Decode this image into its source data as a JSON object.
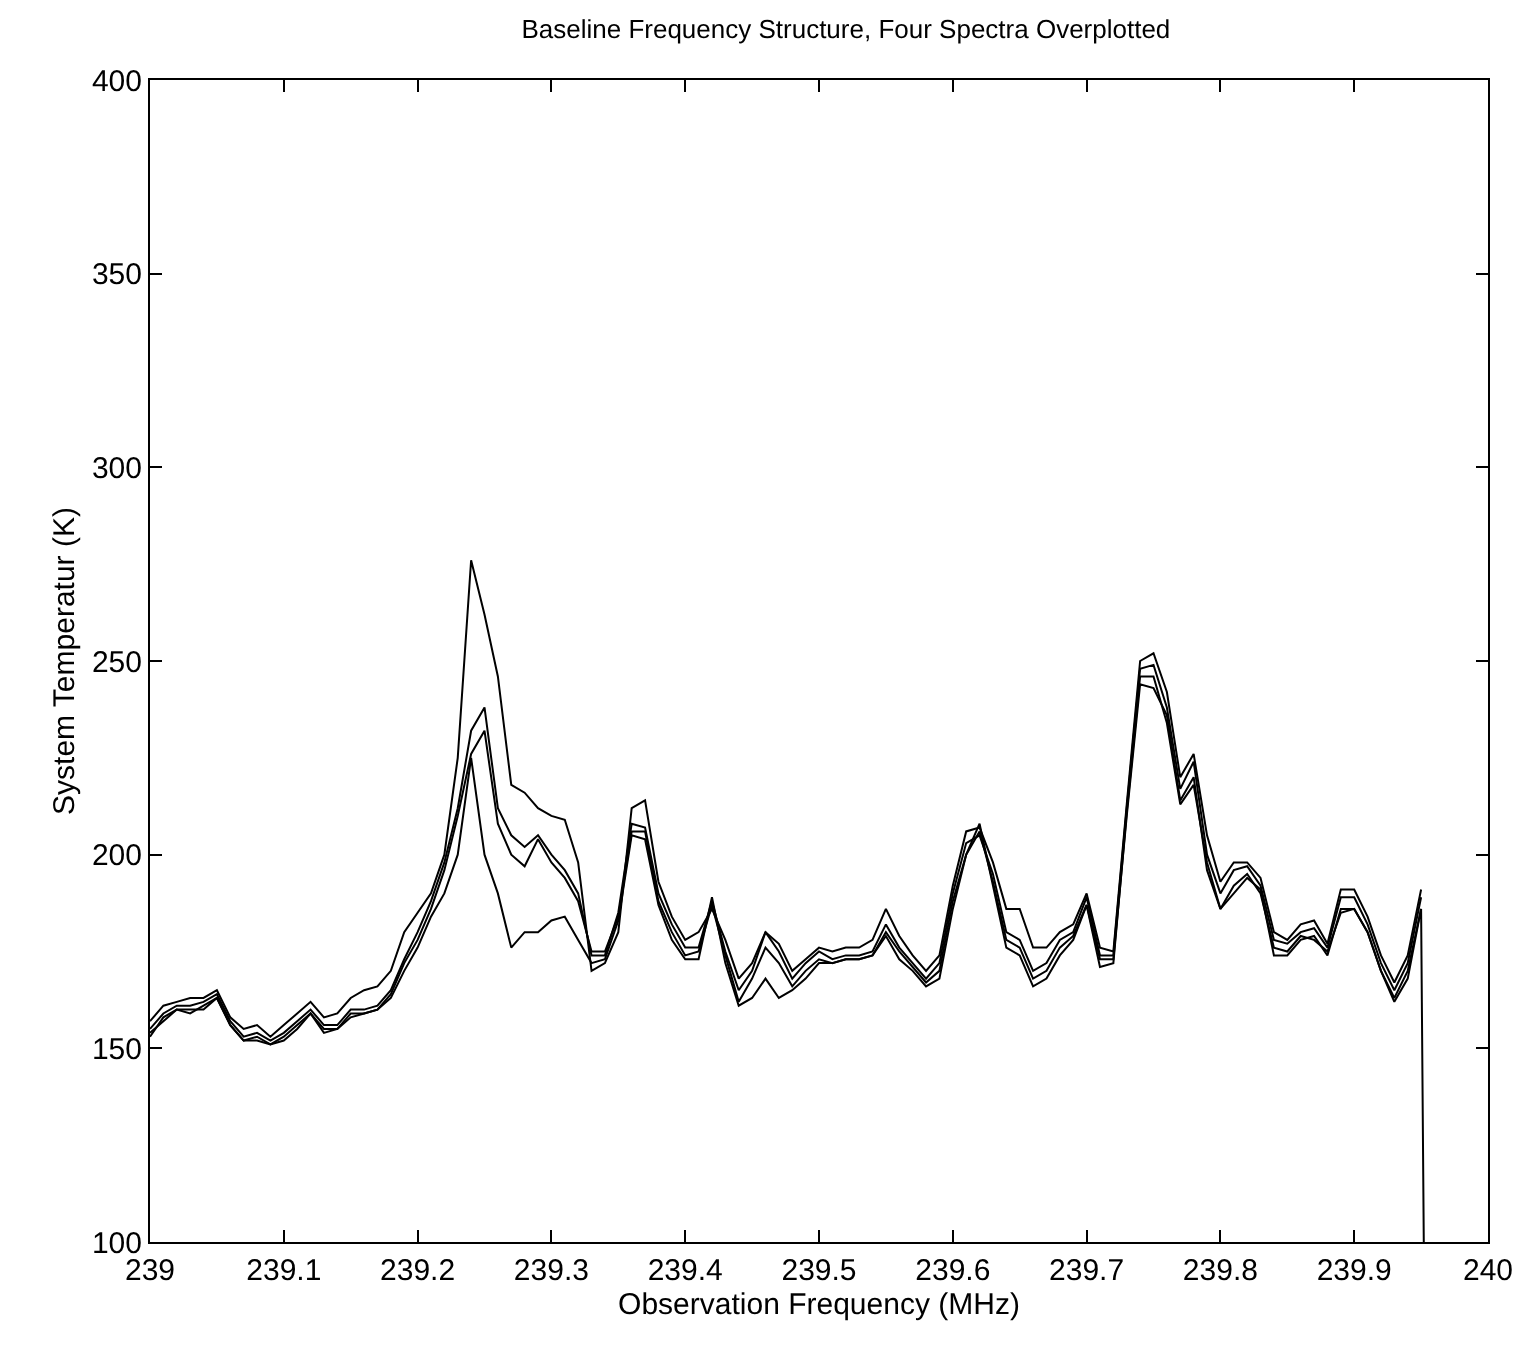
{
  "chart_data": {
    "type": "line",
    "title": "Baseline Frequency Structure, Four Spectra Overplotted",
    "xlabel": "Observation Frequency (MHz)",
    "ylabel": "System Temperatur (K)",
    "x": [
      239.0,
      239.01,
      239.02,
      239.03,
      239.04,
      239.05,
      239.06,
      239.07,
      239.08,
      239.09,
      239.1,
      239.11,
      239.12,
      239.13,
      239.14,
      239.15,
      239.16,
      239.17,
      239.18,
      239.19,
      239.2,
      239.21,
      239.22,
      239.23,
      239.24,
      239.25,
      239.26,
      239.27,
      239.28,
      239.29,
      239.3,
      239.31,
      239.32,
      239.33,
      239.34,
      239.35,
      239.36,
      239.37,
      239.38,
      239.39,
      239.4,
      239.41,
      239.42,
      239.43,
      239.44,
      239.45,
      239.46,
      239.47,
      239.48,
      239.49,
      239.5,
      239.51,
      239.52,
      239.53,
      239.54,
      239.55,
      239.56,
      239.57,
      239.58,
      239.59,
      239.6,
      239.61,
      239.62,
      239.63,
      239.64,
      239.65,
      239.66,
      239.67,
      239.68,
      239.69,
      239.7,
      239.71,
      239.72,
      239.73,
      239.74,
      239.75,
      239.76,
      239.77,
      239.78,
      239.79,
      239.8,
      239.81,
      239.82,
      239.83,
      239.84,
      239.85,
      239.86,
      239.87,
      239.88,
      239.89,
      239.9,
      239.91,
      239.92,
      239.93,
      239.94,
      239.95,
      239.952
    ],
    "series": [
      {
        "color": "#000000",
        "values": [
          157,
          161,
          162,
          163,
          163,
          165,
          158,
          155,
          156,
          153,
          156,
          159,
          162,
          158,
          159,
          163,
          165,
          166,
          170,
          180,
          185,
          190,
          200,
          225,
          276,
          262,
          246,
          218,
          216,
          212,
          210,
          209,
          198,
          170,
          172,
          180,
          212,
          214,
          193,
          184,
          178,
          180,
          186,
          178,
          168,
          172,
          180,
          177,
          170,
          173,
          176,
          175,
          176,
          176,
          178,
          186,
          179,
          174,
          170,
          174,
          192,
          206,
          207,
          198,
          186,
          186,
          176,
          176,
          180,
          182,
          190,
          176,
          175,
          213,
          250,
          252,
          242,
          220,
          226,
          205,
          193,
          198,
          198,
          194,
          180,
          178,
          182,
          183,
          177,
          191,
          191,
          184,
          174,
          167,
          174,
          191,
          null
        ]
      },
      {
        "color": "#000000",
        "values": [
          155,
          159,
          161,
          161,
          162,
          164,
          157,
          153,
          154,
          152,
          154,
          157,
          160,
          156,
          156,
          160,
          160,
          161,
          165,
          173,
          180,
          188,
          198,
          212,
          232,
          238,
          212,
          205,
          202,
          205,
          200,
          196,
          190,
          174,
          174,
          185,
          208,
          207,
          190,
          182,
          176,
          176,
          188,
          175,
          165,
          170,
          180,
          175,
          168,
          172,
          175,
          173,
          174,
          174,
          175,
          182,
          176,
          172,
          168,
          172,
          190,
          203,
          205,
          195,
          180,
          178,
          170,
          172,
          178,
          180,
          189,
          174,
          174,
          212,
          248,
          249,
          238,
          217,
          224,
          200,
          190,
          196,
          197,
          192,
          178,
          177,
          180,
          181,
          176,
          189,
          189,
          182,
          172,
          165,
          172,
          189,
          null
        ]
      },
      {
        "color": "#000000",
        "values": [
          154,
          157,
          160,
          160,
          160,
          163,
          156,
          152,
          153,
          151,
          153,
          156,
          159,
          155,
          155,
          158,
          159,
          160,
          164,
          172,
          178,
          186,
          196,
          210,
          226,
          232,
          208,
          200,
          197,
          204,
          198,
          194,
          188,
          175,
          175,
          184,
          206,
          206,
          188,
          180,
          174,
          175,
          187,
          174,
          162,
          168,
          176,
          172,
          166,
          170,
          173,
          172,
          173,
          173,
          174,
          180,
          175,
          171,
          167,
          170,
          188,
          200,
          206,
          193,
          178,
          176,
          168,
          170,
          176,
          179,
          187,
          173,
          173,
          210,
          244,
          243,
          236,
          214,
          220,
          196,
          186,
          192,
          195,
          190,
          176,
          175,
          179,
          178,
          175,
          185,
          186,
          180,
          170,
          163,
          170,
          186,
          null
        ]
      },
      {
        "color": "#000000",
        "values": [
          153,
          158,
          160,
          159,
          161,
          163,
          156,
          152,
          152,
          151,
          152,
          155,
          159,
          154,
          155,
          159,
          159,
          160,
          163,
          170,
          176,
          184,
          190,
          200,
          225,
          200,
          190,
          176,
          180,
          180,
          183,
          184,
          178,
          172,
          173,
          183,
          205,
          204,
          187,
          178,
          173,
          173,
          189,
          172,
          161,
          163,
          168,
          163,
          165,
          168,
          172,
          172,
          173,
          173,
          174,
          179,
          173,
          170,
          166,
          168,
          186,
          200,
          208,
          192,
          176,
          174,
          166,
          168,
          174,
          178,
          187,
          171,
          172,
          211,
          246,
          246,
          234,
          213,
          218,
          198,
          186,
          190,
          194,
          191,
          174,
          174,
          178,
          179,
          174,
          186,
          186,
          180,
          170,
          162,
          168,
          186,
          100
        ]
      }
    ],
    "xlim": [
      239,
      240
    ],
    "ylim": [
      100,
      400
    ],
    "xticks": [
      {
        "value": 239,
        "label": "239"
      },
      {
        "value": 239.1,
        "label": "239.1"
      },
      {
        "value": 239.2,
        "label": "239.2"
      },
      {
        "value": 239.3,
        "label": "239.3"
      },
      {
        "value": 239.4,
        "label": "239.4"
      },
      {
        "value": 239.5,
        "label": "239.5"
      },
      {
        "value": 239.6,
        "label": "239.6"
      },
      {
        "value": 239.7,
        "label": "239.7"
      },
      {
        "value": 239.8,
        "label": "239.8"
      },
      {
        "value": 239.9,
        "label": "239.9"
      },
      {
        "value": 240,
        "label": "240"
      }
    ],
    "yticks": [
      100,
      150,
      200,
      250,
      300,
      350,
      400
    ],
    "marker": "none",
    "line_style": "solid"
  }
}
